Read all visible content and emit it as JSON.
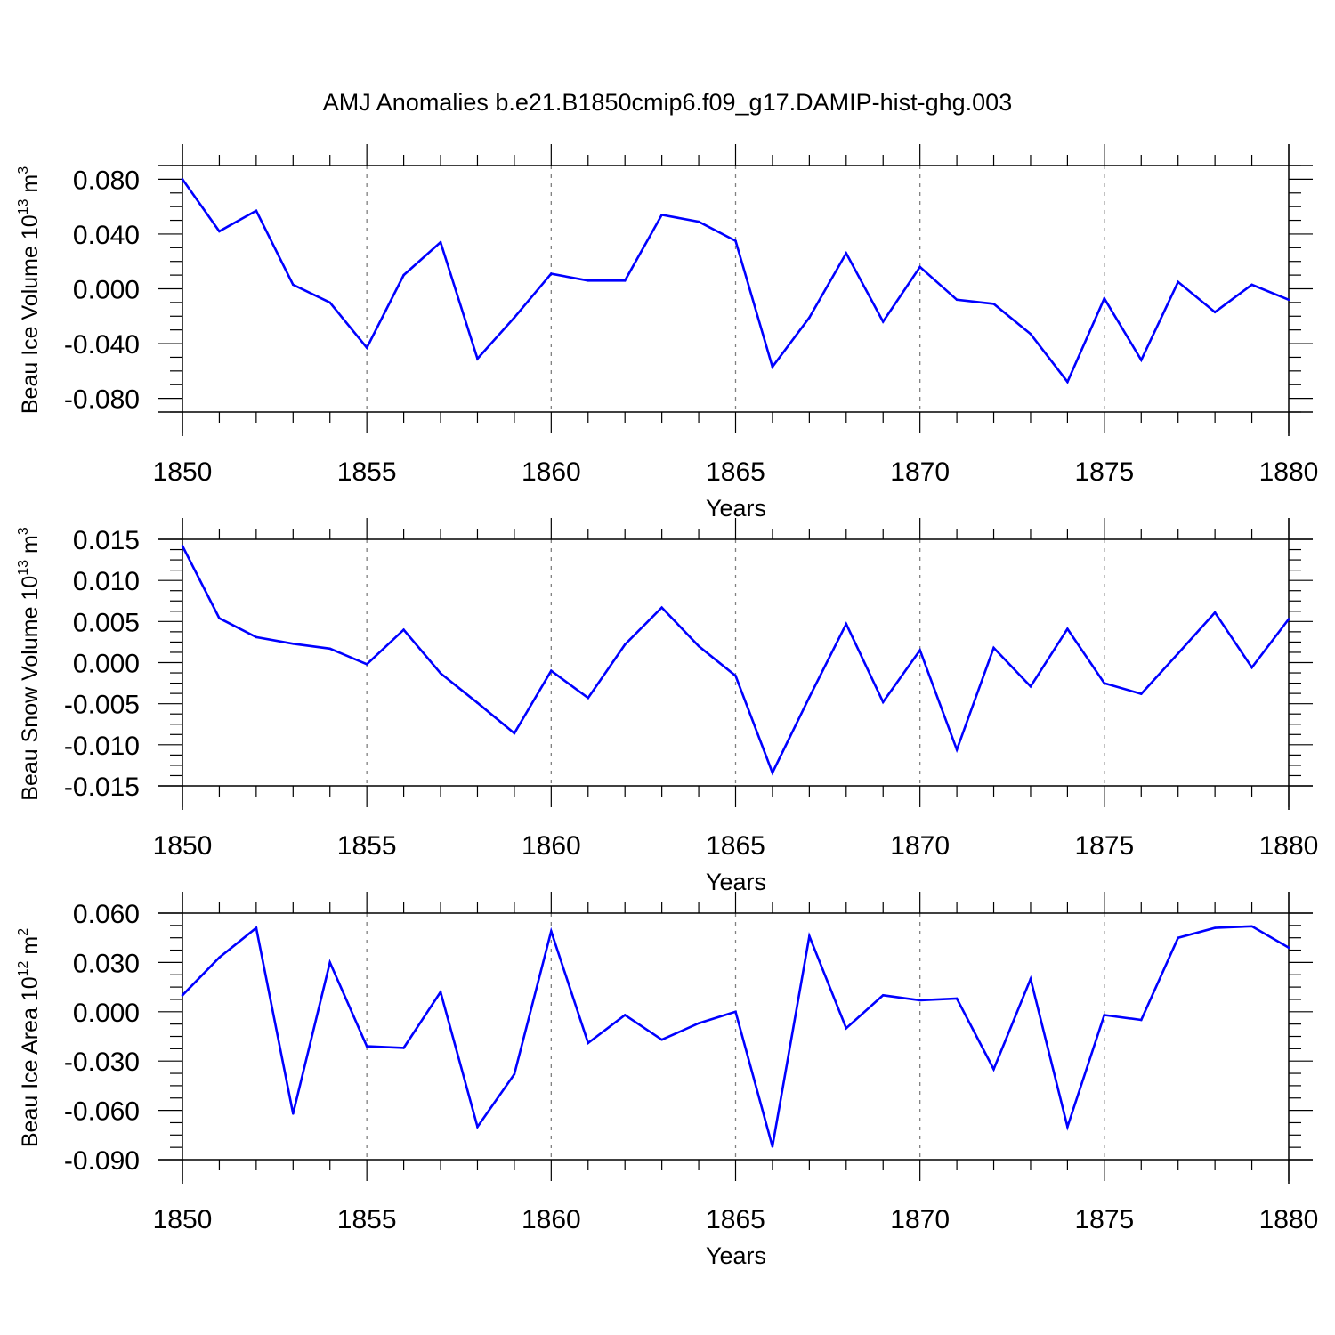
{
  "title": "AMJ Anomalies b.e21.B1850cmip6.f09_g17.DAMIP-hist-ghg.003",
  "colors": {
    "line": "#0000ff",
    "axis": "#000000",
    "grid": "#808080"
  },
  "chart_data": [
    {
      "type": "line",
      "ylabel": {
        "text": "Beau Ice Volume 10",
        "exp": "13",
        "unit": " m",
        "unit_exp": "3"
      },
      "xlabel": "Years",
      "xlim": [
        1850,
        1880
      ],
      "ylim": [
        -0.09,
        0.09
      ],
      "yticks": [
        "0.080",
        "0.040",
        "0.000",
        "-0.040",
        "-0.080"
      ],
      "ytick_values": [
        0.08,
        0.04,
        0.0,
        -0.04,
        -0.08
      ],
      "xticks": [
        "1850",
        "1855",
        "1860",
        "1865",
        "1870",
        "1875",
        "1880"
      ],
      "grid": "vertical dashed at major x ticks",
      "x": [
        1850,
        1851,
        1852,
        1853,
        1854,
        1855,
        1856,
        1857,
        1858,
        1859,
        1860,
        1861,
        1862,
        1863,
        1864,
        1865,
        1866,
        1867,
        1868,
        1869,
        1870,
        1871,
        1872,
        1873,
        1874,
        1875,
        1876,
        1877,
        1878,
        1879,
        1880
      ],
      "y": [
        0.08,
        0.042,
        0.057,
        0.003,
        -0.01,
        -0.043,
        0.01,
        0.034,
        -0.051,
        -0.021,
        0.011,
        0.006,
        0.006,
        0.054,
        0.049,
        0.035,
        -0.057,
        -0.021,
        0.026,
        -0.024,
        0.016,
        -0.008,
        -0.011,
        -0.033,
        -0.068,
        -0.007,
        -0.052,
        0.005,
        -0.017,
        0.003,
        -0.008
      ]
    },
    {
      "type": "line",
      "ylabel": {
        "text": "Beau Snow Volume 10",
        "exp": "13",
        "unit": " m",
        "unit_exp": "3"
      },
      "xlabel": "Years",
      "xlim": [
        1850,
        1880
      ],
      "ylim": [
        -0.015,
        0.015
      ],
      "yticks": [
        "0.015",
        "0.010",
        "0.005",
        "0.000",
        "-0.005",
        "-0.010",
        "-0.015"
      ],
      "ytick_values": [
        0.015,
        0.01,
        0.005,
        0.0,
        -0.005,
        -0.01,
        -0.015
      ],
      "xticks": [
        "1850",
        "1855",
        "1860",
        "1865",
        "1870",
        "1875",
        "1880"
      ],
      "grid": "vertical dashed at major x ticks",
      "x": [
        1850,
        1851,
        1852,
        1853,
        1854,
        1855,
        1856,
        1857,
        1858,
        1859,
        1860,
        1861,
        1862,
        1863,
        1864,
        1865,
        1866,
        1867,
        1868,
        1869,
        1870,
        1871,
        1872,
        1873,
        1874,
        1875,
        1876,
        1877,
        1878,
        1879,
        1880
      ],
      "y": [
        0.0142,
        0.0054,
        0.0031,
        0.0023,
        0.0017,
        -0.0002,
        0.004,
        -0.0013,
        -0.0049,
        -0.0086,
        -0.001,
        -0.0043,
        0.0022,
        0.0067,
        0.002,
        -0.0016,
        -0.0134,
        -0.0042,
        0.0047,
        -0.0048,
        0.0015,
        -0.0106,
        0.0018,
        -0.0029,
        0.0041,
        -0.0025,
        -0.0038,
        0.0011,
        0.0061,
        -0.0006,
        0.0053
      ]
    },
    {
      "type": "line",
      "ylabel": {
        "text": "Beau Ice Area 10",
        "exp": "12",
        "unit": " m",
        "unit_exp": "2"
      },
      "xlabel": "Years",
      "xlim": [
        1850,
        1880
      ],
      "ylim": [
        -0.09,
        0.06
      ],
      "yticks": [
        "0.060",
        "0.030",
        "0.000",
        "-0.030",
        "-0.060",
        "-0.090"
      ],
      "ytick_values": [
        0.06,
        0.03,
        0.0,
        -0.03,
        -0.06,
        -0.09
      ],
      "xticks": [
        "1850",
        "1855",
        "1860",
        "1865",
        "1870",
        "1875",
        "1880"
      ],
      "grid": "vertical dashed at major x ticks",
      "x": [
        1850,
        1851,
        1852,
        1853,
        1854,
        1855,
        1856,
        1857,
        1858,
        1859,
        1860,
        1861,
        1862,
        1863,
        1864,
        1865,
        1866,
        1867,
        1868,
        1869,
        1870,
        1871,
        1872,
        1873,
        1874,
        1875,
        1876,
        1877,
        1878,
        1879,
        1880
      ],
      "y": [
        0.01,
        0.033,
        0.051,
        -0.062,
        0.03,
        -0.021,
        -0.022,
        0.012,
        -0.07,
        -0.038,
        0.049,
        -0.019,
        -0.002,
        -0.017,
        -0.007,
        0.0,
        -0.082,
        0.046,
        -0.01,
        0.01,
        0.007,
        0.008,
        -0.035,
        0.02,
        -0.07,
        -0.002,
        -0.005,
        0.045,
        0.051,
        0.052,
        0.039
      ]
    }
  ]
}
